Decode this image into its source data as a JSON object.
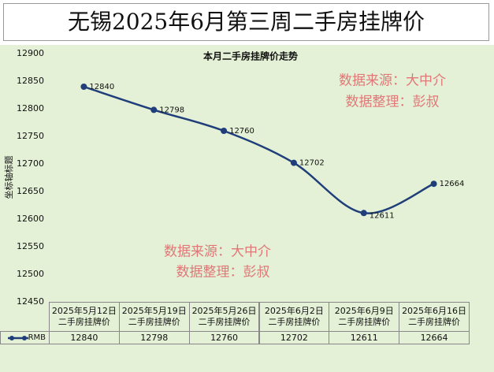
{
  "banner": "无锡2025年6月第三周二手房挂牌价",
  "chart_data": {
    "type": "line",
    "title": "本月二手房挂牌价走势",
    "y_label": "坐标轴标题",
    "categories": [
      "2025年5月12日二手房挂牌价",
      "2025年5月19日二手房挂牌价",
      "2025年5月26日二手房挂牌价",
      "2025年6月2日二手房挂牌价",
      "2025年6月9日二手房挂牌价",
      "2025年6月16日二手房挂牌价"
    ],
    "series": [
      {
        "name": "RMB",
        "color": "#1f3e7a",
        "values": [
          12840,
          12798,
          12760,
          12702,
          12611,
          12664
        ]
      }
    ],
    "ylim": [
      12450,
      12900
    ],
    "yticks": [
      12450,
      12500,
      12550,
      12600,
      12650,
      12700,
      12750,
      12800,
      12850,
      12900
    ],
    "grid": false,
    "annotations": [
      "数据来源：大中介",
      "数据整理：彭叔",
      "数据来源：大中介",
      "数据整理：彭叔"
    ]
  }
}
